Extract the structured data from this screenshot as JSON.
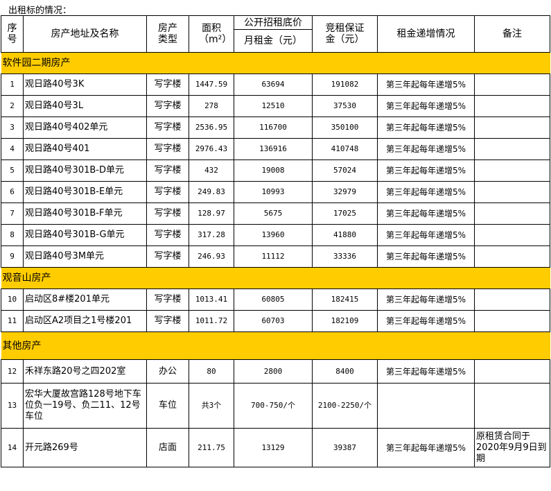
{
  "title": "出租标的情况：",
  "headers": {
    "no": "序号",
    "address": "房产地址及名称",
    "type": "房产类型",
    "area": "面积（m²）",
    "price_group": "公开招租底价",
    "price": "月租金（元）",
    "deposit": "竞租保证金（元）",
    "increase": "租金递增情况",
    "remark": "备注"
  },
  "sections": [
    {
      "name": "软件园二期房产",
      "rows": [
        {
          "no": "1",
          "address": "观日路40号3K",
          "type": "写字楼",
          "area": "1447.59",
          "rent": "63694",
          "deposit": "191082",
          "increase": "第三年起每年递增5%",
          "remark": ""
        },
        {
          "no": "2",
          "address": "观日路40号3L",
          "type": "写字楼",
          "area": "278",
          "rent": "12510",
          "deposit": "37530",
          "increase": "第三年起每年递增5%",
          "remark": ""
        },
        {
          "no": "3",
          "address": "观日路40号402单元",
          "type": "写字楼",
          "area": "2536.95",
          "rent": "116700",
          "deposit": "350100",
          "increase": "第三年起每年递增5%",
          "remark": ""
        },
        {
          "no": "4",
          "address": "观日路40号401",
          "type": "写字楼",
          "area": "2976.43",
          "rent": "136916",
          "deposit": "410748",
          "increase": "第三年起每年递增5%",
          "remark": ""
        },
        {
          "no": "5",
          "address": "观日路40号301B-D单元",
          "type": "写字楼",
          "area": "432",
          "rent": "19008",
          "deposit": "57024",
          "increase": "第三年起每年递增5%",
          "remark": ""
        },
        {
          "no": "6",
          "address": "观日路40号301B-E单元",
          "type": "写字楼",
          "area": "249.83",
          "rent": "10993",
          "deposit": "32979",
          "increase": "第三年起每年递增5%",
          "remark": ""
        },
        {
          "no": "7",
          "address": "观日路40号301B-F单元",
          "type": "写字楼",
          "area": "128.97",
          "rent": "5675",
          "deposit": "17025",
          "increase": "第三年起每年递增5%",
          "remark": ""
        },
        {
          "no": "8",
          "address": "观日路40号301B-G单元",
          "type": "写字楼",
          "area": "317.28",
          "rent": "13960",
          "deposit": "41880",
          "increase": "第三年起每年递增5%",
          "remark": ""
        },
        {
          "no": "9",
          "address": "观日路40号3M单元",
          "type": "写字楼",
          "area": "246.93",
          "rent": "11112",
          "deposit": "33336",
          "increase": "第三年起每年递增5%",
          "remark": ""
        }
      ]
    },
    {
      "name": "观音山房产",
      "rows": [
        {
          "no": "10",
          "address": "启动区8#楼201单元",
          "type": "写字楼",
          "area": "1013.41",
          "rent": "60805",
          "deposit": "182415",
          "increase": "第三年起每年递增5%",
          "remark": ""
        },
        {
          "no": "11",
          "address": "启动区A2项目之1号楼201",
          "type": "写字楼",
          "area": "1011.72",
          "rent": "60703",
          "deposit": "182109",
          "increase": "第三年起每年递增5%",
          "remark": ""
        }
      ]
    },
    {
      "name": "其他房产",
      "rows": [
        {
          "no": "12",
          "address": "禾祥东路20号之四202室",
          "type": "办公",
          "area": "80",
          "rent": "2800",
          "deposit": "8400",
          "increase": "第三年起每年递增5%",
          "remark": ""
        },
        {
          "no": "13",
          "address": "宏华大厦故宫路128号地下车位负一19号、负二11、12号车位",
          "type": "车位",
          "area": "共3个",
          "rent": "700-750/个",
          "deposit": "2100-2250/个",
          "increase": "",
          "remark": ""
        },
        {
          "no": "14",
          "address": "开元路269号",
          "type": "店面",
          "area": "211.75",
          "rent": "13129",
          "deposit": "39387",
          "increase": "第三年起每年递增5%",
          "remark": "原租赁合同于2020年9月9日到期"
        }
      ]
    }
  ]
}
